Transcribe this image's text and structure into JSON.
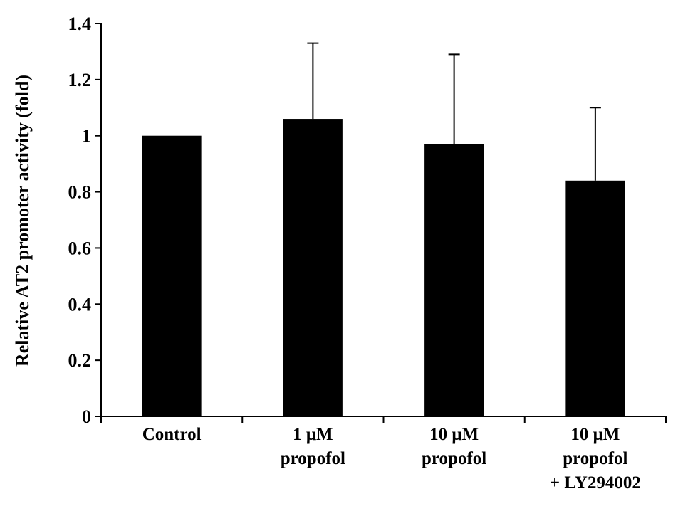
{
  "chart_data": {
    "type": "bar",
    "title": "",
    "xlabel": "",
    "ylabel": "Relative AT2 promoter activity (fold)",
    "ylim": [
      0,
      1.4
    ],
    "yticks": [
      "0",
      "0.2",
      "0.4",
      "0.6",
      "0.8",
      "1",
      "1.2",
      "1.4"
    ],
    "categories": [
      [
        "Control"
      ],
      [
        "1 μM",
        "propofol"
      ],
      [
        "10 μM",
        "propofol"
      ],
      [
        "10 μM",
        "propofol",
        "+ LY294002"
      ]
    ],
    "values": [
      1.0,
      1.06,
      0.97,
      0.84
    ],
    "error_upper": [
      0,
      0.27,
      0.32,
      0.26
    ],
    "grid": false,
    "legend": "none",
    "bar_color": "#000000"
  }
}
